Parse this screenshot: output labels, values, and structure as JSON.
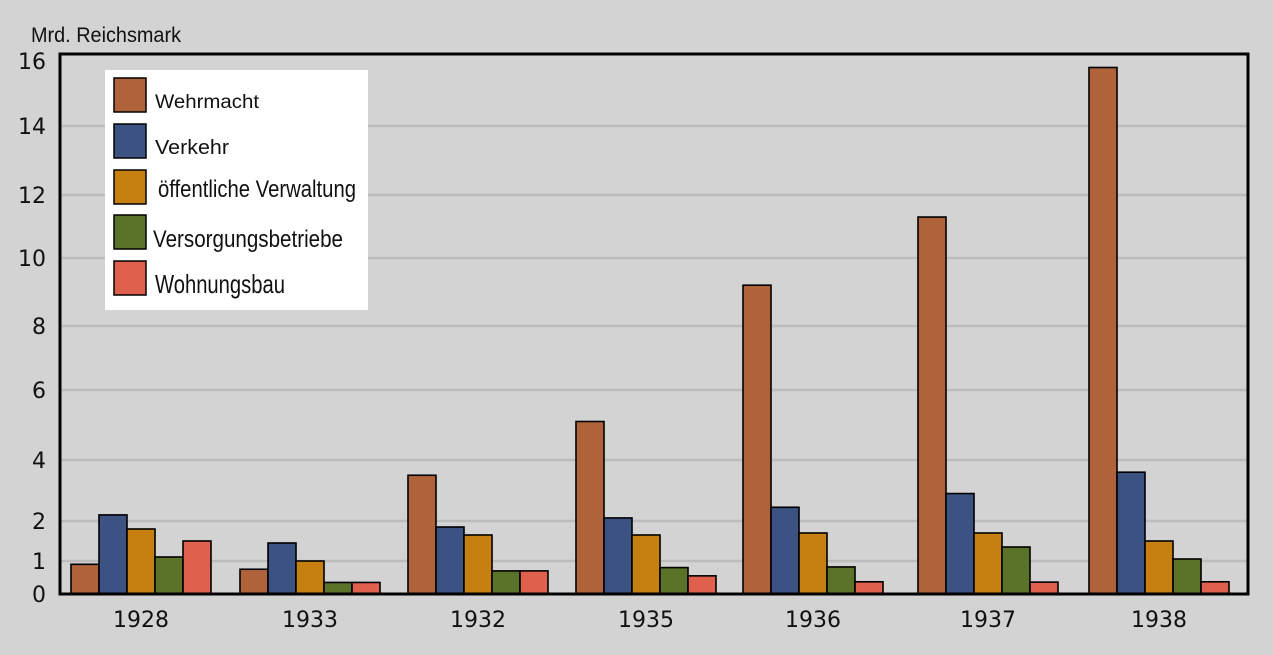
{
  "chart_data": {
    "type": "bar",
    "ylabel": "Mrd. Reichsmark",
    "xlabel": "",
    "categories": [
      "1928",
      "1933",
      "1932",
      "1935",
      "1936",
      "1937",
      "1938"
    ],
    "y_ticks": [
      "0",
      "1",
      "2",
      "4",
      "6",
      "8",
      "10",
      "12",
      "14",
      "16"
    ],
    "grid": true,
    "legend_position": "top-left",
    "series": [
      {
        "name": "Wehrmacht",
        "color": "#b0633a",
        "values": [
          0.9,
          0.75,
          3.5,
          5.1,
          9.2,
          11.3,
          15.8
        ]
      },
      {
        "name": "Verkehr",
        "color": "#3b5282",
        "values": [
          2.2,
          1.45,
          1.85,
          2.1,
          2.45,
          2.9,
          3.6
        ]
      },
      {
        "name": "öffentliche Verwaltung",
        "color": "#c6800f",
        "values": [
          1.8,
          1.0,
          1.65,
          1.65,
          1.7,
          1.7,
          1.5
        ]
      },
      {
        "name": "Versorgungsbetriebe",
        "color": "#5a7329",
        "values": [
          1.1,
          0.35,
          0.7,
          0.8,
          0.82,
          1.35,
          1.05
        ]
      },
      {
        "name": "Wohnungsbau",
        "color": "#e0604e",
        "values": [
          1.5,
          0.35,
          0.7,
          0.55,
          0.37,
          0.36,
          0.37
        ]
      }
    ]
  }
}
